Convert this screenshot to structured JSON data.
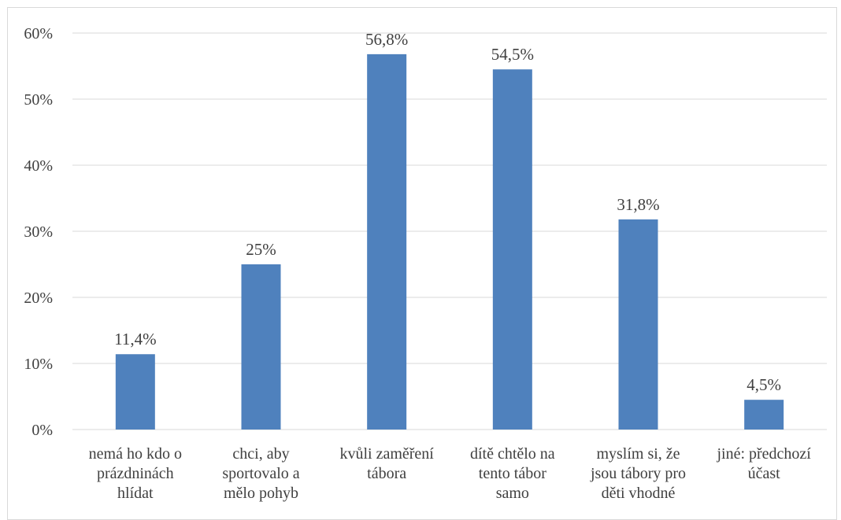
{
  "chart_data": {
    "type": "bar",
    "categories": [
      [
        "nemá ho kdo o",
        "prázdninách",
        "hlídat"
      ],
      [
        "chci, aby",
        "sportovalo a",
        "mělo pohyb"
      ],
      [
        "kvůli zaměření",
        "tábora"
      ],
      [
        "dítě chtělo na",
        "tento tábor",
        "samo"
      ],
      [
        "myslím si, že",
        "jsou tábory pro",
        "děti vhodné"
      ],
      [
        "jiné: předchozí",
        "účast"
      ]
    ],
    "values": [
      11.4,
      25,
      56.8,
      54.5,
      31.8,
      4.5
    ],
    "data_labels": [
      "11,4%",
      "25%",
      "56,8%",
      "54,5%",
      "31,8%",
      "4,5%"
    ],
    "y_ticks": [
      "0%",
      "10%",
      "20%",
      "30%",
      "40%",
      "50%",
      "60%"
    ],
    "ylim": [
      0,
      60
    ],
    "grid": true,
    "legend": "none",
    "colors": {
      "bar": "#4f81bd",
      "grid": "#d9d9d9",
      "text": "#404040"
    }
  }
}
